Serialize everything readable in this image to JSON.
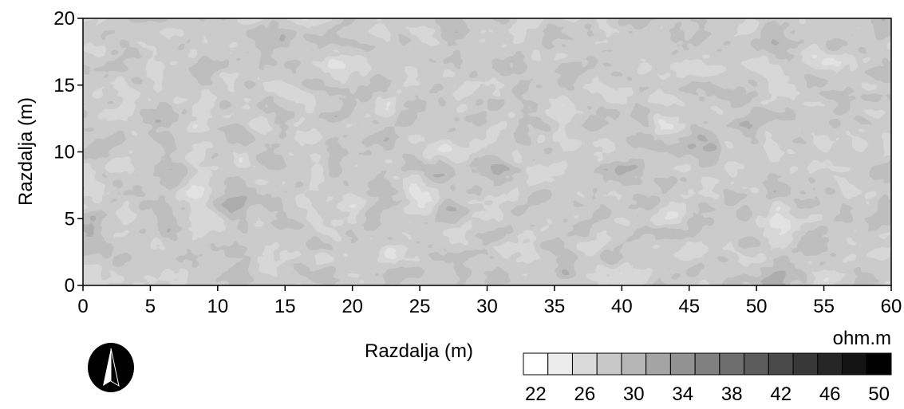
{
  "chart_data": {
    "type": "contour",
    "xlabel": "Razdalja (m)",
    "ylabel": "Razdalja (m)",
    "xlim": [
      0,
      60
    ],
    "xticks": [
      0,
      5,
      10,
      15,
      20,
      25,
      30,
      35,
      40,
      45,
      50,
      55,
      60
    ],
    "ylim": [
      0,
      20
    ],
    "yticks": [
      0,
      5,
      10,
      15,
      20
    ],
    "colorbar": {
      "unit": "ohm.m",
      "levels": [
        22,
        24,
        26,
        28,
        30,
        32,
        34,
        36,
        38,
        40,
        42,
        44,
        46,
        48,
        50
      ],
      "colors": [
        "#ffffff",
        "#ececec",
        "#dadada",
        "#c8c8c8",
        "#b6b6b6",
        "#a4a4a4",
        "#929292",
        "#808080",
        "#6e6e6e",
        "#5c5c5c",
        "#4a4a4a",
        "#383838",
        "#262626",
        "#141414",
        "#000000"
      ],
      "ticks": [
        22,
        26,
        30,
        34,
        38,
        42,
        46,
        50
      ]
    }
  }
}
